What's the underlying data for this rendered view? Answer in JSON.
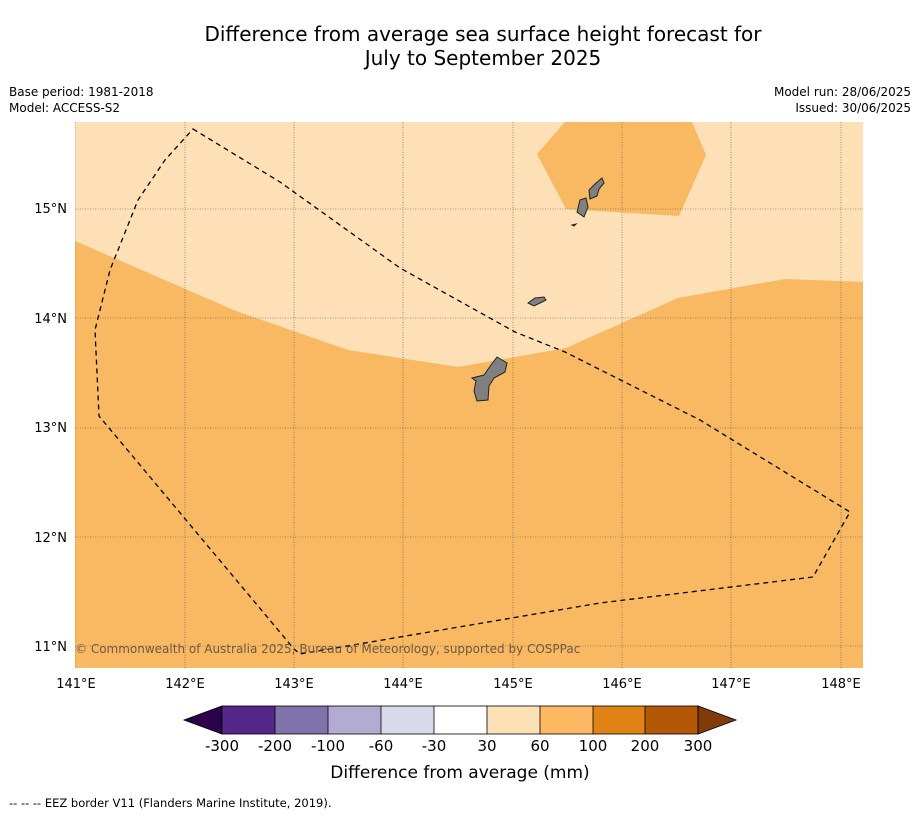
{
  "title_line1": "Difference from average sea surface height forecast for",
  "title_line2": "July to September 2025",
  "meta": {
    "base_period": "Base period: 1981-2018",
    "model": "Model: ACCESS-S2",
    "model_run": "Model run: 28/06/2025",
    "issued": "Issued: 30/06/2025"
  },
  "map": {
    "lat_labels": [
      "15°N",
      "14°N",
      "13°N",
      "12°N",
      "11°N"
    ],
    "lon_labels": [
      "141°E",
      "142°E",
      "143°E",
      "144°E",
      "145°E",
      "146°E",
      "147°E",
      "148°E"
    ],
    "copyright": "© Commonwealth of Australia 2025, Bureau of Meteorology, supported by COSPPac",
    "colors": {
      "band_30_60": "#fde0b6",
      "band_60_100": "#f9b862",
      "land": "#808080"
    }
  },
  "colorbar": {
    "ticks": [
      "-300",
      "-200",
      "-100",
      "-60",
      "-30",
      "30",
      "60",
      "100",
      "200",
      "300"
    ],
    "colors": [
      "#2d004b",
      "#542788",
      "#8073ac",
      "#b2abd2",
      "#d8daeb",
      "#ffffff",
      "#fee0b6",
      "#fdb863",
      "#e08214",
      "#b35806",
      "#7f3b08"
    ],
    "label": "Difference from average (mm)"
  },
  "footer": "--  --  -- EEZ border V11 (Flanders Marine Institute, 2019)."
}
